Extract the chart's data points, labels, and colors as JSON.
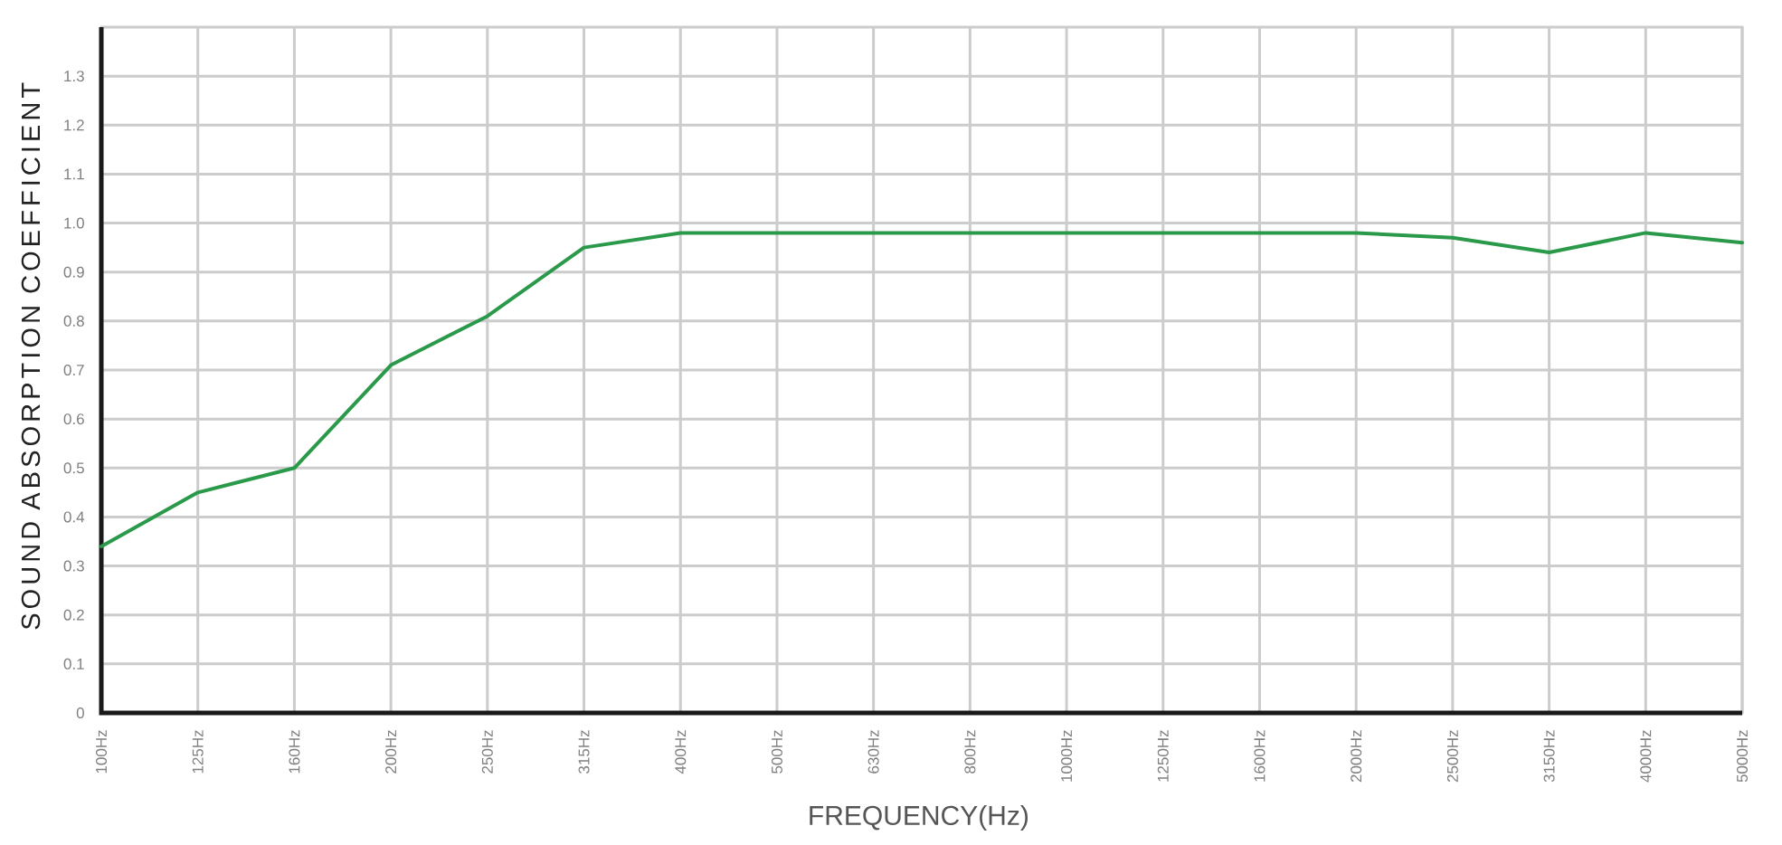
{
  "chart_data": {
    "type": "line",
    "xlabel": "FREQUENCY(Hz)",
    "ylabel": "SOUND ABSORPTION COEFFICIENT",
    "categories": [
      "100Hz",
      "125Hz",
      "160Hz",
      "200Hz",
      "250Hz",
      "315Hz",
      "400Hz",
      "500Hz",
      "630Hz",
      "800Hz",
      "1000Hz",
      "1250Hz",
      "1600Hz",
      "2000Hz",
      "2500Hz",
      "3150Hz",
      "4000Hz",
      "5000Hz"
    ],
    "series": [
      {
        "color": "#2a9a4a",
        "values": [
          0.34,
          0.45,
          0.5,
          0.71,
          0.81,
          0.95,
          0.98,
          0.98,
          0.98,
          0.98,
          0.98,
          0.98,
          0.98,
          0.98,
          0.97,
          0.94,
          0.98,
          0.96
        ]
      }
    ],
    "ylim": [
      0,
      1.4
    ],
    "yticks": [
      0,
      0.1,
      0.2,
      0.3,
      0.4,
      0.5,
      0.6,
      0.7,
      0.8,
      0.9,
      {
        "value": 1,
        "label": "1.0"
      },
      1.1,
      1.2,
      1.3
    ],
    "grid": true
  }
}
